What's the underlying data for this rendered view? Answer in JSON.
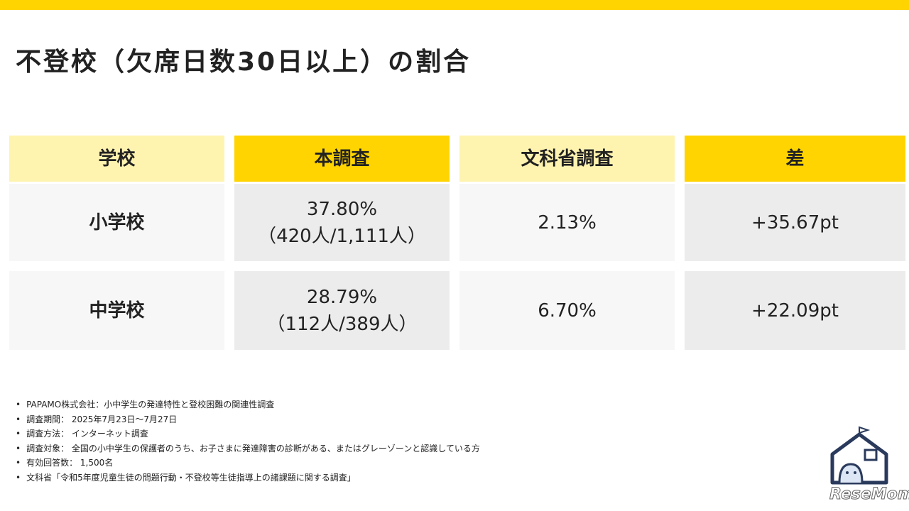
{
  "title": "不登校（欠席日数30日以上）の割合",
  "table": {
    "header": [
      "学校",
      "本調査",
      "文科省調査",
      "差"
    ],
    "rows": [
      [
        "小学校",
        [
          "37.80%",
          "（420人/1,111人）"
        ],
        "2.13%",
        "+35.67pt"
      ],
      [
        "中学校",
        [
          "28.79%",
          "（112人/389人）"
        ],
        "6.70%",
        "+22.09pt"
      ]
    ]
  },
  "notes": [
    "PAPAMO株式会社：小中学生の発達特性と登校困難の関連性調査",
    "調査期間： 2025年7月23日～7月27日",
    "調査方法： インターネット調査",
    "調査対象： 全国の小中学生の保護者のうち、お子さまに発達障害の診断がある、またはグレーゾーンと認識している方",
    "有効回答数： 1,500名",
    "文科省「令和5年度児童生徒の問題行動・不登校等生徒指導上の諸課題に関する調査」"
  ],
  "watermark": "ReseMom"
}
